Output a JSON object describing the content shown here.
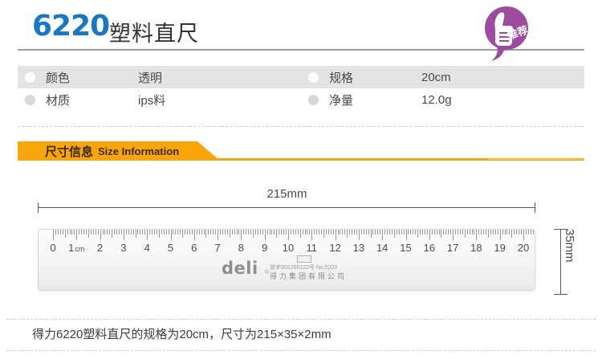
{
  "header": {
    "model": "6220",
    "title": "塑料直尺",
    "badge_label": "推荐"
  },
  "specs": [
    {
      "label": "颜色",
      "value": "透明"
    },
    {
      "label": "规格",
      "value": "20cm"
    },
    {
      "label": "材质",
      "value": "ips料"
    },
    {
      "label": "净量",
      "value": "12.0g"
    }
  ],
  "section": {
    "title_cn": "尺寸信息",
    "title_en": "Size Information"
  },
  "diagram": {
    "width_label": "215mm",
    "height_label": "35mm",
    "ruler": {
      "numbers": [
        "0",
        "1",
        "2",
        "3",
        "4",
        "5",
        "6",
        "7",
        "8",
        "9",
        "10",
        "11",
        "12",
        "13",
        "14",
        "15",
        "16",
        "17",
        "18",
        "19",
        "20"
      ],
      "unit": "cm",
      "brand": "deli",
      "reg_symbol": "®",
      "reg_no": "浙字902260122号 No.6220",
      "company": "得力集团有限公司"
    }
  },
  "footer": {
    "text": "得力6220塑料直尺的规格为20cm，尺寸为215×35×2mm"
  },
  "colors": {
    "accent_blue": "#1a78c2",
    "badge_purple": "#9c4c9c",
    "banner_orange": "#faa50a",
    "row_gray": "#e4e4e4"
  }
}
